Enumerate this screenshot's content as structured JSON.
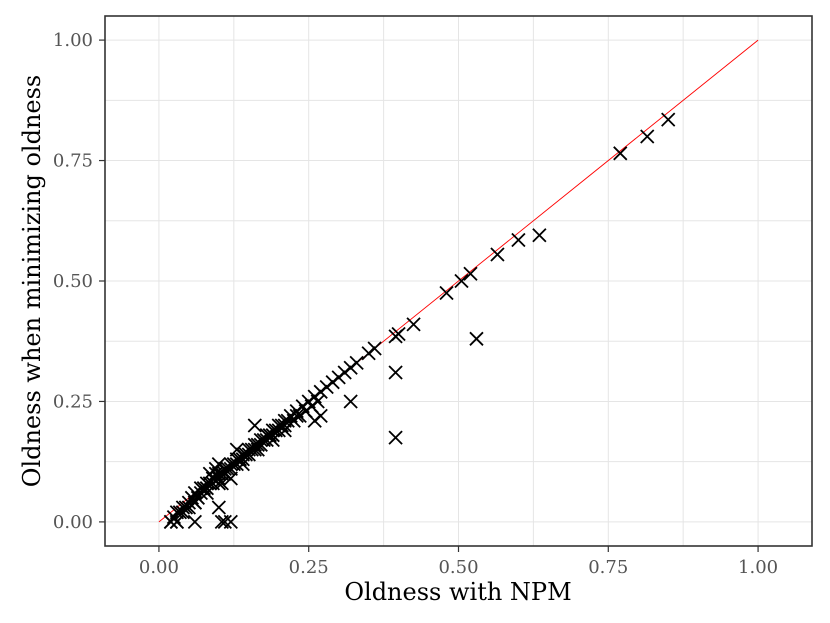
{
  "chart_data": {
    "type": "scatter",
    "title": "",
    "xlabel": "Oldness with NPM",
    "ylabel": "Oldness when minimizing oldness",
    "xlim": [
      -0.09,
      1.09
    ],
    "ylim": [
      -0.05,
      1.05
    ],
    "x_ticks": [
      "0.00",
      "0.25",
      "0.50",
      "0.75",
      "1.00"
    ],
    "y_ticks": [
      "0.00",
      "0.25",
      "0.50",
      "0.75",
      "1.00"
    ],
    "grid": true,
    "marker": "x",
    "reference_line": {
      "from": [
        0.0,
        0.0
      ],
      "to": [
        1.0,
        1.0
      ],
      "color": "#ff0000"
    },
    "colors": {
      "marker": "#000000",
      "line": "#ff0000",
      "grid": "#e5e5e5",
      "frame": "#333333"
    },
    "series": [
      {
        "x": [
          0.02,
          0.025,
          0.03,
          0.03,
          0.035,
          0.04,
          0.045,
          0.05,
          0.05,
          0.055,
          0.06,
          0.06,
          0.065,
          0.07,
          0.07,
          0.075,
          0.08,
          0.08,
          0.085,
          0.09,
          0.09,
          0.095,
          0.1,
          0.1,
          0.105,
          0.11,
          0.11,
          0.115,
          0.12,
          0.12,
          0.125,
          0.13,
          0.13,
          0.135,
          0.14,
          0.14,
          0.145,
          0.15,
          0.15,
          0.155,
          0.16,
          0.16,
          0.165,
          0.17,
          0.17,
          0.175,
          0.18,
          0.18,
          0.185,
          0.19,
          0.19,
          0.195,
          0.2,
          0.2,
          0.205,
          0.21,
          0.21,
          0.215,
          0.22,
          0.225,
          0.23,
          0.235,
          0.24,
          0.245,
          0.25,
          0.255,
          0.26,
          0.265,
          0.27,
          0.28,
          0.29,
          0.3,
          0.31,
          0.32,
          0.33,
          0.35,
          0.36,
          0.395,
          0.4,
          0.425,
          0.48,
          0.505,
          0.52,
          0.565,
          0.6,
          0.77,
          0.815,
          0.85,
          0.04,
          0.06,
          0.08,
          0.1,
          0.12,
          0.14,
          0.165,
          0.19,
          0.21,
          0.23,
          0.16,
          0.1,
          0.095,
          0.13,
          0.085,
          0.105,
          0.27,
          0.32,
          0.395,
          0.395,
          0.53,
          0.635,
          0.02,
          0.03,
          0.06,
          0.105,
          0.11,
          0.12,
          0.1,
          0.26
        ],
        "y": [
          0.0,
          0.01,
          0.0,
          0.02,
          0.02,
          0.03,
          0.03,
          0.04,
          0.03,
          0.05,
          0.04,
          0.06,
          0.05,
          0.06,
          0.07,
          0.07,
          0.08,
          0.07,
          0.08,
          0.09,
          0.08,
          0.1,
          0.09,
          0.1,
          0.1,
          0.11,
          0.1,
          0.11,
          0.12,
          0.11,
          0.12,
          0.13,
          0.12,
          0.13,
          0.14,
          0.13,
          0.14,
          0.15,
          0.14,
          0.15,
          0.16,
          0.15,
          0.16,
          0.17,
          0.16,
          0.17,
          0.18,
          0.17,
          0.18,
          0.19,
          0.18,
          0.19,
          0.2,
          0.19,
          0.2,
          0.21,
          0.2,
          0.21,
          0.22,
          0.21,
          0.23,
          0.22,
          0.24,
          0.23,
          0.25,
          0.24,
          0.26,
          0.25,
          0.27,
          0.28,
          0.29,
          0.3,
          0.31,
          0.32,
          0.33,
          0.35,
          0.36,
          0.385,
          0.39,
          0.41,
          0.475,
          0.5,
          0.515,
          0.555,
          0.585,
          0.765,
          0.8,
          0.835,
          0.02,
          0.04,
          0.06,
          0.08,
          0.09,
          0.12,
          0.15,
          0.17,
          0.19,
          0.22,
          0.2,
          0.12,
          0.11,
          0.15,
          0.1,
          0.08,
          0.22,
          0.25,
          0.31,
          0.175,
          0.38,
          0.595,
          0.0,
          0.0,
          0.0,
          0.0,
          0.0,
          0.0,
          0.03,
          0.21
        ]
      }
    ]
  }
}
